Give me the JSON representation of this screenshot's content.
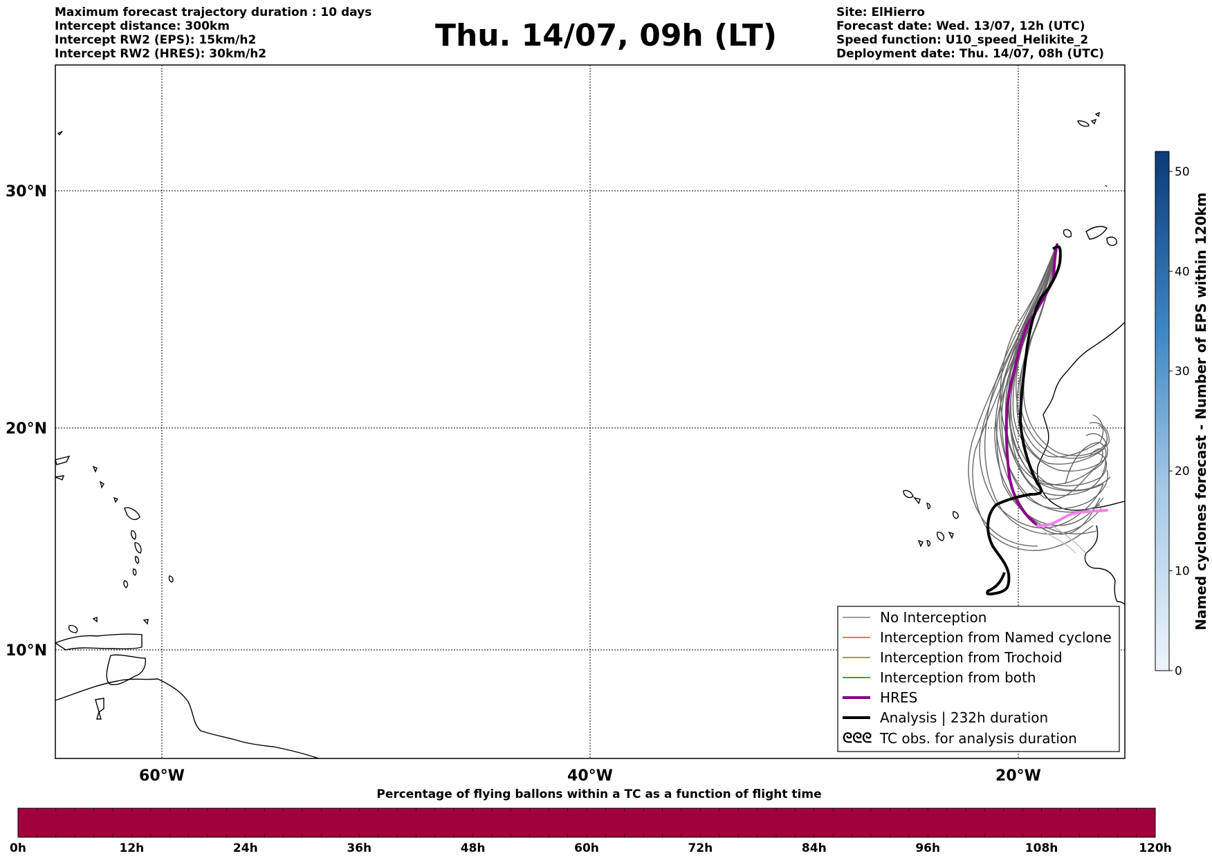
{
  "header": {
    "left": [
      "Maximum forecast trajectory duration : 10 days",
      "Intercept distance: 300km",
      "Intercept RW2 (EPS):  15km/h2",
      "Intercept RW2 (HRES): 30km/h2"
    ],
    "title": "Thu. 14/07, 09h (LT)",
    "right": [
      "Site: ElHierro",
      "Forecast date: Wed. 13/07, 12h (UTC)",
      "Speed function: U10_speed_Helikite_2",
      "Deployment date: Thu. 14/07, 08h (UTC)"
    ]
  },
  "map": {
    "lat_labels": [
      "30°N",
      "20°N",
      "10°N"
    ],
    "lon_labels": [
      "60°W",
      "40°W",
      "20°W"
    ],
    "legend": [
      {
        "label": "No Interception",
        "color": "#7f7f7f"
      },
      {
        "label": "Interception from Named cyclone",
        "color": "#ff4500"
      },
      {
        "label": "Interception from Trochoid",
        "color": "#808000"
      },
      {
        "label": "Interception from both",
        "color": "#008000"
      },
      {
        "label": "HRES",
        "color": "#800080"
      },
      {
        "label": "Analysis | 232h duration",
        "color": "#000000"
      },
      {
        "label": "TC obs. for analysis duration",
        "color": "#000000"
      }
    ]
  },
  "colorbar": {
    "title": "Named cyclones forecast - Number of EPS within 120km",
    "ticks": [
      "0",
      "10",
      "20",
      "30",
      "40",
      "50"
    ],
    "min": 0,
    "max": 52,
    "color_low": "#e6eff9",
    "color_high": "#0b3a78"
  },
  "bottom_bar": {
    "title": "Percentage of flying ballons within a TC as a function of flight time",
    "ticks": [
      "0h",
      "12h",
      "24h",
      "36h",
      "48h",
      "60h",
      "72h",
      "84h",
      "96h",
      "108h",
      "120h"
    ],
    "fill_color": "#a0003c"
  }
}
